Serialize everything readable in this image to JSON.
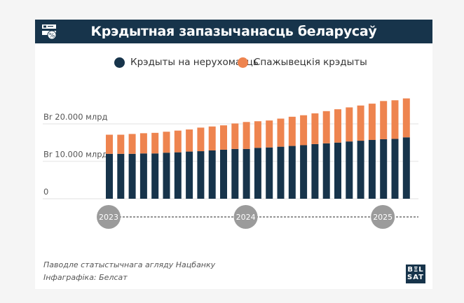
{
  "header": {
    "title": "Крэдытная запазычанасць беларусаў",
    "icon": "loan-percent-icon"
  },
  "colors": {
    "header_bg": "#17344b",
    "real_estate": "#17344b",
    "consumer": "#ee844f",
    "timeline_circle": "#9b9b9b"
  },
  "chart_data": {
    "type": "bar",
    "stacked": true,
    "title": "Крэдытная запазычанасць беларусаў",
    "legend_position": "top",
    "grid": true,
    "ylim": [
      0,
      27000
    ],
    "yticks": [
      {
        "value": 0,
        "label": "0"
      },
      {
        "value": 10000,
        "label": "Br 10.000 млрд"
      },
      {
        "value": 20000,
        "label": "Br 20.000 млрд"
      }
    ],
    "x_year_markers": [
      {
        "label": "2023",
        "index": 0
      },
      {
        "label": "2024",
        "index": 12
      },
      {
        "label": "2025",
        "index": 24
      }
    ],
    "series": [
      {
        "name": "Крэдыты на нерухомасць",
        "color": "#17344b",
        "values": [
          12000,
          12000,
          12000,
          12100,
          12100,
          12300,
          12400,
          12600,
          12700,
          12900,
          13100,
          13300,
          13300,
          13600,
          13700,
          13900,
          14100,
          14300,
          14600,
          14800,
          15000,
          15300,
          15500,
          15700,
          15900,
          16000,
          16400
        ]
      },
      {
        "name": "Спажывецкія крэдыты",
        "color": "#ee844f",
        "values": [
          5100,
          5100,
          5300,
          5400,
          5500,
          5600,
          5800,
          5900,
          6300,
          6400,
          6500,
          6800,
          7200,
          7100,
          7200,
          7500,
          7800,
          8000,
          8200,
          8600,
          8900,
          9100,
          9400,
          9700,
          10200,
          10300,
          10400
        ]
      }
    ]
  },
  "footer": {
    "source": "Паводле статыстычнага агляду Нацбанку",
    "credit": "Інфаграфіка: Белсат",
    "logo_top": "BΞL",
    "logo_bottom": "SAT"
  }
}
